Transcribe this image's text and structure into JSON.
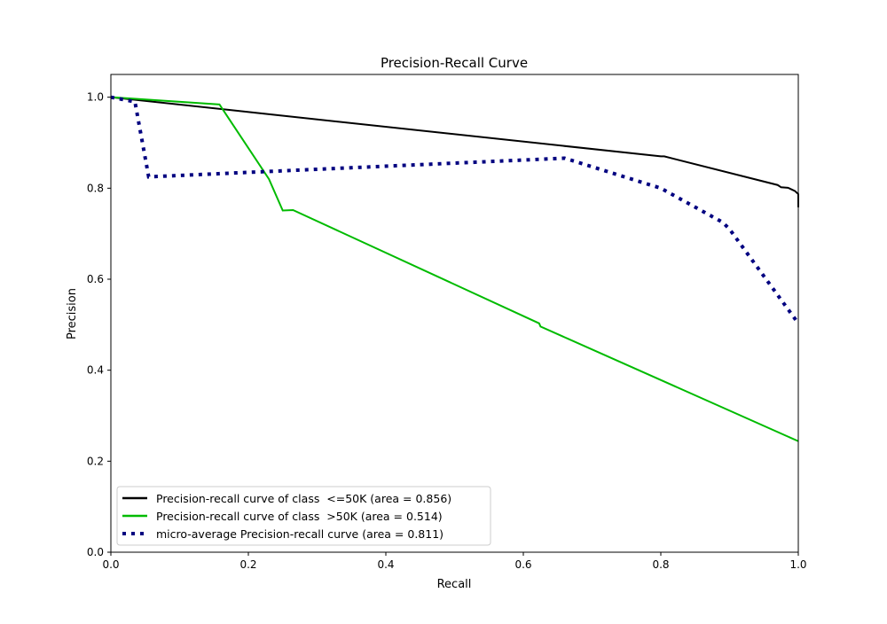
{
  "chart_data": {
    "type": "line",
    "title": "Precision-Recall Curve",
    "xlabel": "Recall",
    "ylabel": "Precision",
    "xlim": [
      0,
      1.0
    ],
    "ylim": [
      0,
      1.05
    ],
    "xticks": [
      "0.0",
      "0.2",
      "0.4",
      "0.6",
      "0.8",
      "1.0"
    ],
    "yticks": [
      "0.0",
      "0.2",
      "0.4",
      "0.6",
      "0.8",
      "1.0"
    ],
    "grid": false,
    "legend_position": "lower-left",
    "series": [
      {
        "name": "Precision-recall curve of class  <=50K (area = 0.856)",
        "color": "#000000",
        "style": "solid",
        "x": [
          0,
          0.8,
          0.805,
          0.97,
          0.975,
          0.985,
          0.995,
          1.0,
          1.0
        ],
        "y": [
          1.0,
          0.87,
          0.87,
          0.807,
          0.802,
          0.801,
          0.794,
          0.787,
          0.758
        ]
      },
      {
        "name": "Precision-recall curve of class  >50K (area = 0.514)",
        "color": "#00bb00",
        "style": "solid",
        "x": [
          0,
          0.158,
          0.23,
          0.25,
          0.265,
          0.623,
          0.625,
          1.0
        ],
        "y": [
          1.0,
          0.984,
          0.82,
          0.751,
          0.752,
          0.503,
          0.496,
          0.244
        ]
      },
      {
        "name": "micro-average Precision-recall curve (area = 0.811)",
        "color": "#000080",
        "style": "dotted",
        "x": [
          0,
          0.035,
          0.055,
          0.66,
          0.8,
          0.89,
          0.9,
          1.0
        ],
        "y": [
          1.0,
          0.99,
          0.825,
          0.866,
          0.8,
          0.725,
          0.71,
          0.503
        ]
      }
    ]
  }
}
